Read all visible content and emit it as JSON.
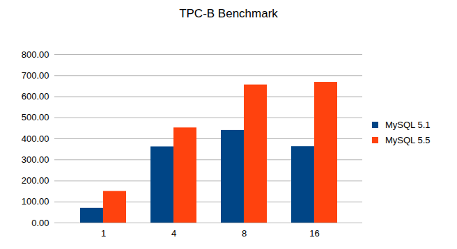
{
  "chart_data": {
    "type": "bar",
    "title": "TPC-B Benchmark",
    "categories": [
      "1",
      "4",
      "8",
      "16"
    ],
    "series": [
      {
        "name": "MySQL 5.1",
        "color": "#004586",
        "values": [
          70,
          362,
          440,
          363
        ]
      },
      {
        "name": "MySQL 5.5",
        "color": "#ff420e",
        "values": [
          150,
          452,
          656,
          668
        ]
      }
    ],
    "ylim": [
      0,
      800
    ],
    "yticks": [
      {
        "value": 0,
        "label": "0.00"
      },
      {
        "value": 100,
        "label": "100.00"
      },
      {
        "value": 200,
        "label": "200.00"
      },
      {
        "value": 300,
        "label": "300.00"
      },
      {
        "value": 400,
        "label": "400.00"
      },
      {
        "value": 500,
        "label": "500.00"
      },
      {
        "value": 600,
        "label": "600.00"
      },
      {
        "value": 700,
        "label": "700.00"
      },
      {
        "value": 800,
        "label": "800.00"
      }
    ],
    "grid": true,
    "legend": "right"
  }
}
